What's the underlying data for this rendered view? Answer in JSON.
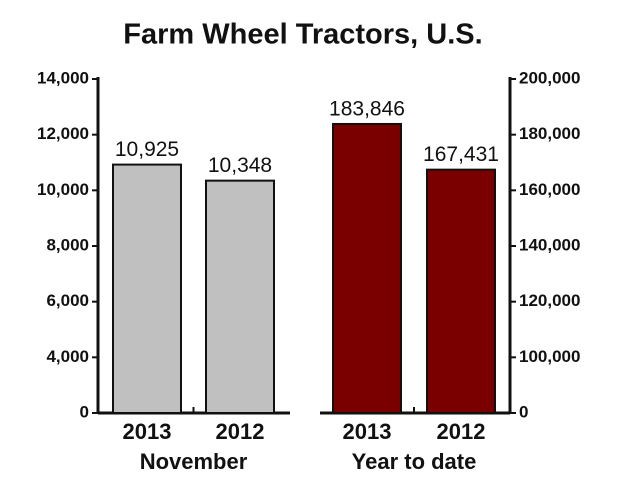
{
  "chart_data": {
    "type": "bar",
    "title": "Farm Wheel Tractors, U.S.",
    "axis_break": true,
    "ylim": [
      0,
      14000
    ],
    "yticks": [
      0,
      {
        "value": 4000,
        "label": "4,000"
      },
      {
        "value": 6000,
        "label": "6,000"
      },
      {
        "value": 8000,
        "label": "8,000"
      },
      {
        "value": 10000,
        "label": "10,000"
      },
      {
        "value": 12000,
        "label": "12,000"
      },
      {
        "value": 14000,
        "label": "14,000"
      }
    ],
    "y2lim": [
      0,
      200000
    ],
    "y2ticks": [
      0,
      {
        "value": 100000,
        "label": "100,000"
      },
      {
        "value": 120000,
        "label": "120,000"
      },
      {
        "value": 140000,
        "label": "140,000"
      },
      {
        "value": 160000,
        "label": "160,000"
      },
      {
        "value": 180000,
        "label": "180,000"
      },
      {
        "value": 200000,
        "label": "200,000"
      }
    ],
    "groups": [
      {
        "name": "November",
        "axis": "y",
        "color": "#c0c0c0",
        "categories": [
          "2013",
          "2012"
        ],
        "values": [
          10925,
          10348
        ],
        "value_labels": [
          "10,925",
          "10,348"
        ]
      },
      {
        "name": "Year to date",
        "axis": "y2",
        "color": "#7a0000",
        "categories": [
          "2013",
          "2012"
        ],
        "values": [
          183846,
          167431
        ],
        "value_labels": [
          "183,846",
          "167,431"
        ]
      }
    ]
  }
}
